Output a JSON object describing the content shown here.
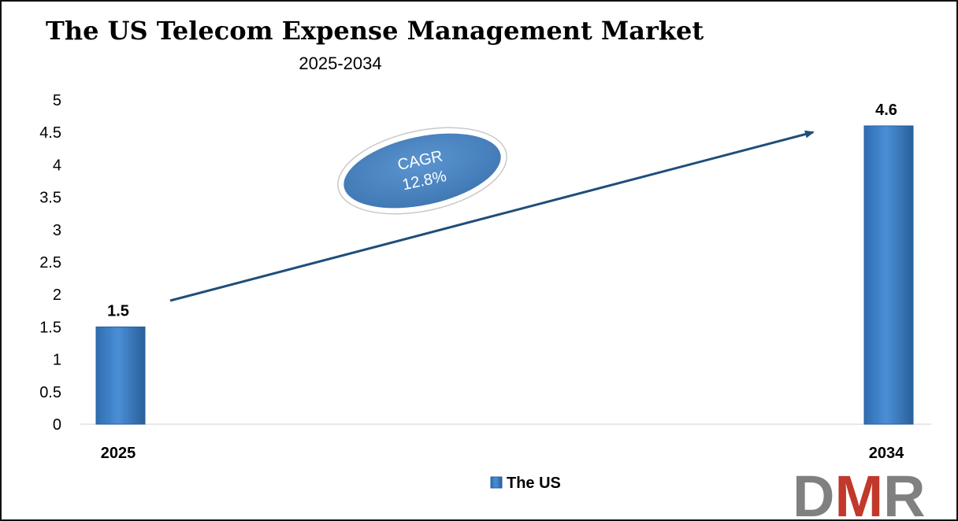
{
  "chart_data": {
    "type": "bar",
    "title": "The US Telecom Expense Management Market",
    "subtitle": "2025-2034",
    "categories": [
      "2025",
      "2034"
    ],
    "series": [
      {
        "name": "The US",
        "values": [
          1.5,
          4.6
        ]
      }
    ],
    "data_labels": [
      "1.5",
      "4.6"
    ],
    "ylim": [
      0,
      5
    ],
    "yticks": [
      "0",
      "0.5",
      "1",
      "1.5",
      "2",
      "2.5",
      "3",
      "3.5",
      "4",
      "4.5",
      "5"
    ],
    "grid": false,
    "legend": "bottom-center",
    "annotation": {
      "label": "CAGR",
      "value": "12.8%"
    },
    "colors": {
      "bar": "#3a7dc4",
      "arrow": "#1f4e79",
      "ellipse": "#4a84c0"
    }
  },
  "logo": {
    "text": "DMR",
    "colors": {
      "d": "#808080",
      "m": "#c0392b",
      "r": "#808080"
    }
  }
}
